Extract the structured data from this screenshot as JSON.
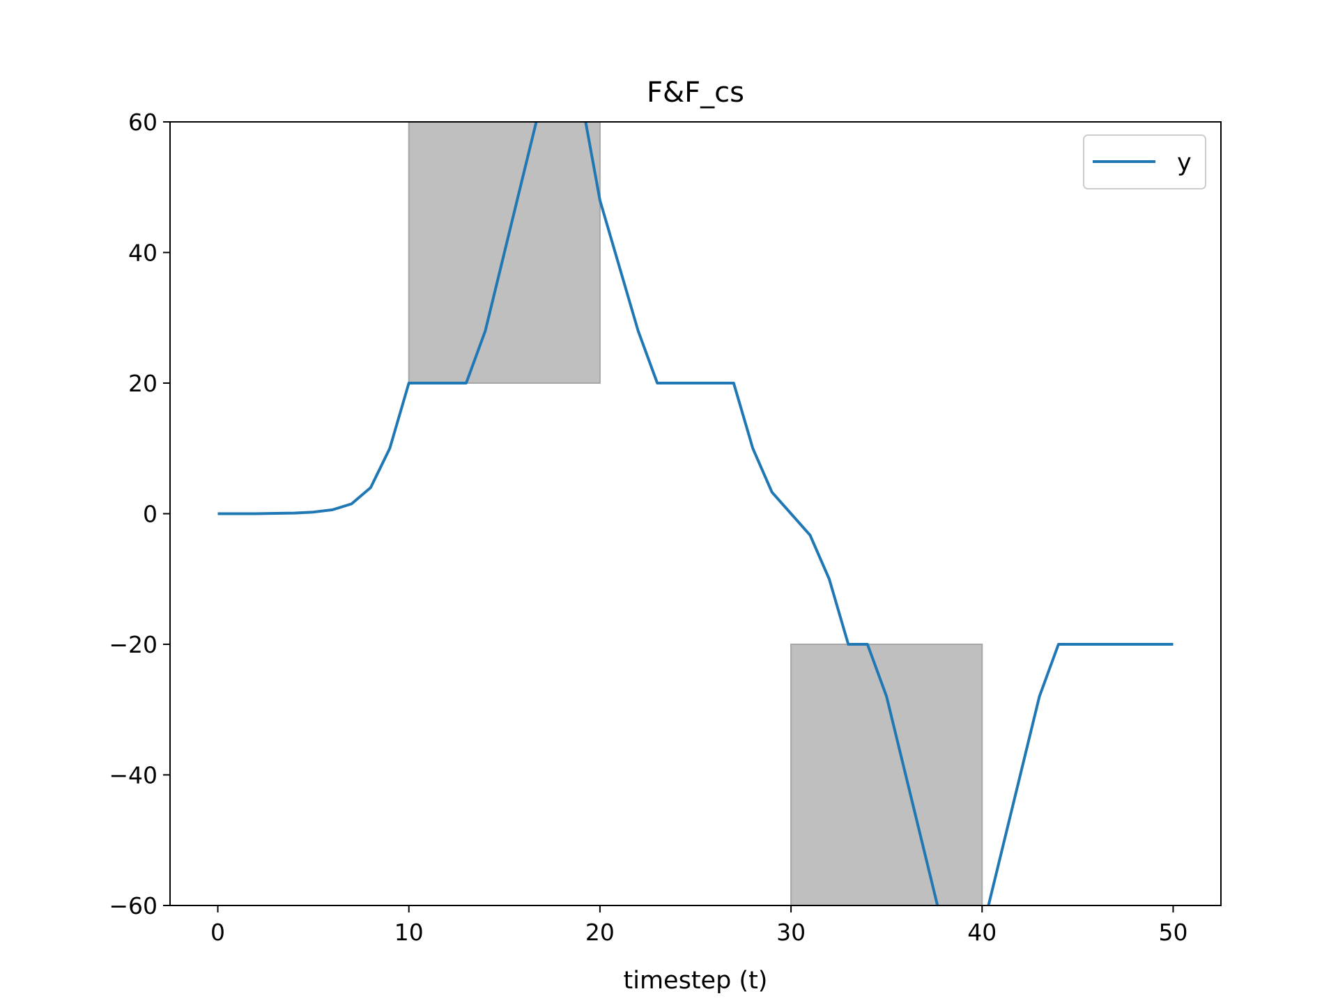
{
  "chart_data": {
    "type": "line",
    "title": "F&F_cs",
    "xlabel": "timestep (t)",
    "ylabel": "",
    "xlim": [
      -2.5,
      52.5
    ],
    "ylim": [
      -60,
      60
    ],
    "xticks": [
      0,
      10,
      20,
      30,
      40,
      50
    ],
    "yticks": [
      -60,
      -40,
      -20,
      0,
      20,
      40,
      60
    ],
    "xtick_labels": [
      "0",
      "10",
      "20",
      "30",
      "40",
      "50"
    ],
    "ytick_labels": [
      "−60",
      "−40",
      "−20",
      "0",
      "20",
      "40",
      "60"
    ],
    "grid": false,
    "legend": {
      "position": "top-right",
      "entries": [
        "y"
      ]
    },
    "shaded_regions": [
      {
        "x": [
          10,
          20
        ],
        "y": [
          20,
          60
        ],
        "color": "#bfbfbf"
      },
      {
        "x": [
          30,
          40
        ],
        "y": [
          -60,
          -20
        ],
        "color": "#bfbfbf"
      }
    ],
    "series": [
      {
        "name": "y",
        "color": "#1f77b4",
        "x": [
          0,
          1,
          2,
          3,
          4,
          5,
          6,
          7,
          8,
          9,
          10,
          11,
          12,
          13,
          14,
          15,
          16,
          17,
          18,
          19,
          20,
          21,
          22,
          23,
          24,
          25,
          26,
          27,
          28,
          29,
          30,
          31,
          32,
          33,
          34,
          35,
          36,
          37,
          38,
          39,
          40,
          41,
          42,
          43,
          44,
          45,
          46,
          47,
          48,
          49,
          50
        ],
        "y": [
          0,
          0,
          0,
          0.05,
          0.1,
          0.25,
          0.6,
          1.5,
          4,
          10,
          20,
          20,
          20,
          20,
          28,
          40,
          52,
          64,
          72,
          64,
          48,
          38,
          28,
          20,
          20,
          20,
          20,
          20,
          10,
          3.3,
          0,
          -3.3,
          -10,
          -20,
          -20,
          -28,
          -40,
          -52,
          -64,
          -72,
          -64,
          -52,
          -40,
          -28,
          -20,
          -20,
          -20,
          -20,
          -20,
          -20,
          -20
        ]
      }
    ]
  }
}
